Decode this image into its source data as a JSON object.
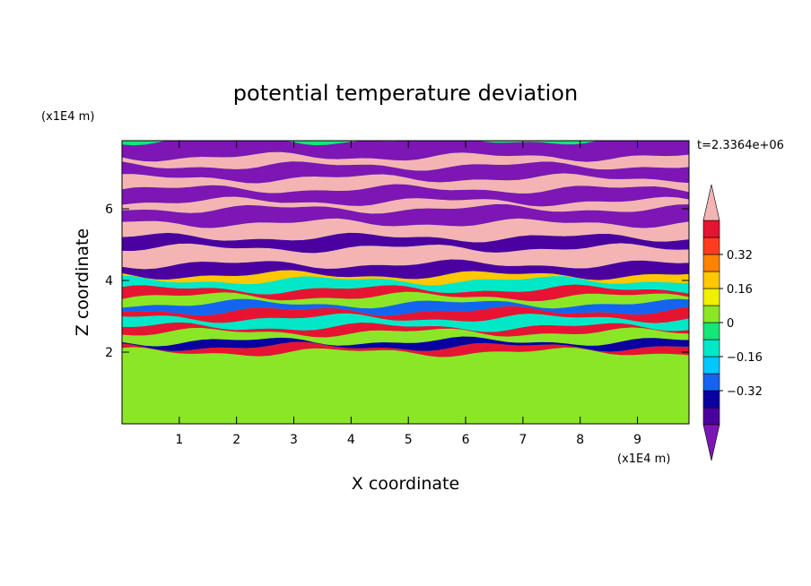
{
  "chart_data": {
    "type": "heatmap",
    "title": "potential temperature deviation",
    "time_label": "t=2.3364e+06",
    "xlabel": "X coordinate",
    "ylabel": "Z coordinate",
    "x_scale_label": "(x1E4 m)",
    "y_scale_label": "(x1E4 m)",
    "xlim": [
      0,
      9.9
    ],
    "ylim": [
      0,
      7.9
    ],
    "x_ticks": [
      1,
      2,
      3,
      4,
      5,
      6,
      7,
      8,
      9
    ],
    "y_ticks": [
      2,
      4,
      6
    ],
    "colorbar": {
      "levels": [
        -0.48,
        -0.4,
        -0.32,
        -0.24,
        -0.16,
        -0.08,
        0,
        0.08,
        0.16,
        0.24,
        0.32,
        0.4,
        0.48
      ],
      "tick_labels": [
        "0.32",
        "0.16",
        "0",
        "−0.16",
        "−0.32"
      ],
      "tick_values": [
        0.32,
        0.16,
        0,
        -0.16,
        -0.32
      ],
      "colors": [
        "#7d16b4",
        "#4b00a0",
        "#0a00a0",
        "#1464f0",
        "#00c8ff",
        "#00e8c8",
        "#14e678",
        "#8ce628",
        "#f0f000",
        "#ffc800",
        "#ff8200",
        "#ff3c1e",
        "#e61432",
        "#f5b4b4"
      ],
      "extend": "both"
    },
    "layers": [
      {
        "z0": 0.0,
        "z1": 2.0,
        "value": 0.04
      },
      {
        "z0": 2.0,
        "z1": 2.15,
        "value": 0.45
      },
      {
        "z0": 2.15,
        "z1": 2.3,
        "value": -0.36
      },
      {
        "z0": 2.3,
        "z1": 2.55,
        "value": 0.0
      },
      {
        "z0": 2.55,
        "z1": 2.7,
        "value": 0.45
      },
      {
        "z0": 2.7,
        "z1": 2.95,
        "value": -0.12
      },
      {
        "z0": 2.95,
        "z1": 3.15,
        "value": 0.45
      },
      {
        "z0": 3.15,
        "z1": 3.35,
        "value": -0.3
      },
      {
        "z0": 3.35,
        "z1": 3.55,
        "value": 0.04
      },
      {
        "z0": 3.55,
        "z1": 3.75,
        "value": 0.45
      },
      {
        "z0": 3.75,
        "z1": 4.0,
        "value": -0.12
      },
      {
        "z0": 4.0,
        "z1": 4.15,
        "value": 0.2
      },
      {
        "z0": 4.15,
        "z1": 4.45,
        "value": -0.45
      },
      {
        "z0": 4.45,
        "z1": 4.9,
        "value": 0.5
      },
      {
        "z0": 4.9,
        "z1": 5.2,
        "value": -0.45
      },
      {
        "z0": 5.2,
        "z1": 5.6,
        "value": 0.5
      },
      {
        "z0": 5.6,
        "z1": 6.0,
        "value": -0.5
      },
      {
        "z0": 6.0,
        "z1": 6.2,
        "value": 0.5
      },
      {
        "z0": 6.2,
        "z1": 6.55,
        "value": -0.5
      },
      {
        "z0": 6.55,
        "z1": 6.85,
        "value": 0.5
      },
      {
        "z0": 6.85,
        "z1": 7.2,
        "value": -0.5
      },
      {
        "z0": 7.2,
        "z1": 7.45,
        "value": 0.5
      },
      {
        "z0": 7.45,
        "z1": 7.9,
        "value": -0.5
      }
    ]
  }
}
